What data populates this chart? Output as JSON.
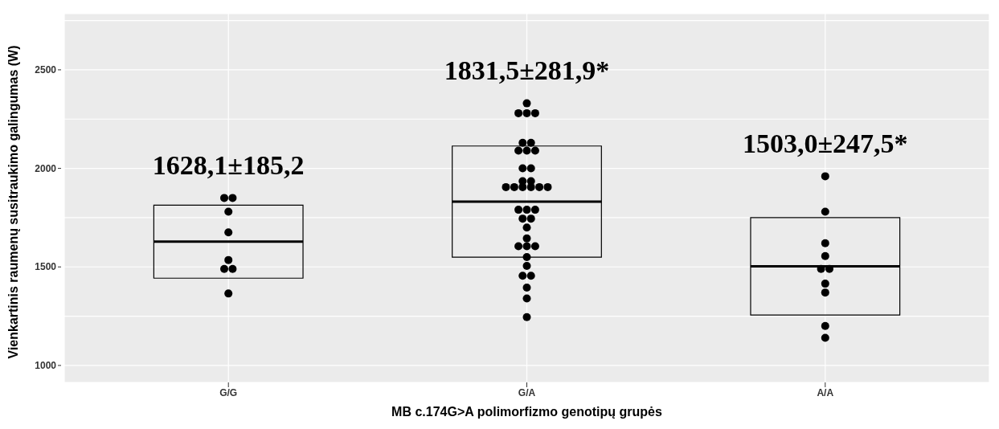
{
  "chart_data": {
    "type": "box",
    "xlabel": "MB c.174G>A polimorfizmo genotipų grupės",
    "ylabel": "Vienkartinis raumenų susitraukimo galingumas (W)",
    "categories": [
      "G/G",
      "G/A",
      "A/A"
    ],
    "boxes": [
      {
        "low": 1442.9,
        "q1": 1442.9,
        "median": 1628.1,
        "q3": 1813.3,
        "high": 1813.3
      },
      {
        "low": 1549.6,
        "q1": 1549.6,
        "median": 1831.5,
        "q3": 2113.4,
        "high": 2113.4
      },
      {
        "low": 1255.5,
        "q1": 1255.5,
        "median": 1503.0,
        "q3": 1750.5,
        "high": 1750.5
      }
    ],
    "color": "#000000",
    "series": [
      {
        "type": "scatter",
        "color": "#000000",
        "marker": "circle",
        "x": [
          "G/G",
          "G/G",
          "G/G",
          "G/G",
          "G/G",
          "G/G",
          "G/G",
          "G/G",
          "G/A",
          "G/A",
          "G/A",
          "G/A",
          "G/A",
          "G/A",
          "G/A",
          "G/A",
          "G/A",
          "G/A",
          "G/A",
          "G/A",
          "G/A",
          "G/A",
          "G/A",
          "G/A",
          "G/A",
          "G/A",
          "G/A",
          "G/A",
          "G/A",
          "G/A",
          "G/A",
          "G/A",
          "G/A",
          "G/A",
          "G/A",
          "G/A",
          "G/A",
          "G/A",
          "G/A",
          "G/A",
          "G/A",
          "G/A",
          "G/A",
          "G/A",
          "A/A",
          "A/A",
          "A/A",
          "A/A",
          "A/A",
          "A/A",
          "A/A",
          "A/A",
          "A/A",
          "A/A"
        ],
        "values": [
          1850,
          1850,
          1780,
          1675,
          1535,
          1490,
          1490,
          1365,
          2330,
          2280,
          2280,
          2280,
          2130,
          2130,
          2090,
          2090,
          2090,
          2000,
          2000,
          1935,
          1935,
          1905,
          1905,
          1905,
          1905,
          1905,
          1905,
          1790,
          1790,
          1790,
          1745,
          1745,
          1700,
          1645,
          1605,
          1605,
          1605,
          1550,
          1505,
          1455,
          1455,
          1395,
          1340,
          1245,
          1960,
          1780,
          1620,
          1555,
          1490,
          1490,
          1415,
          1370,
          1200,
          1140
        ]
      }
    ],
    "annotations": [
      "1628,1±185,2",
      "1831,5±281,9*",
      "1503,0±247,5*"
    ],
    "ylim": [
      914,
      2785
    ],
    "yticks": [
      1000,
      {
        "value": 1250,
        "label": null
      },
      1500,
      {
        "value": 1750,
        "label": null
      },
      2000,
      {
        "value": 2250,
        "label": null
      },
      2500,
      {
        "value": 2750,
        "label": null
      }
    ],
    "grid": true
  }
}
